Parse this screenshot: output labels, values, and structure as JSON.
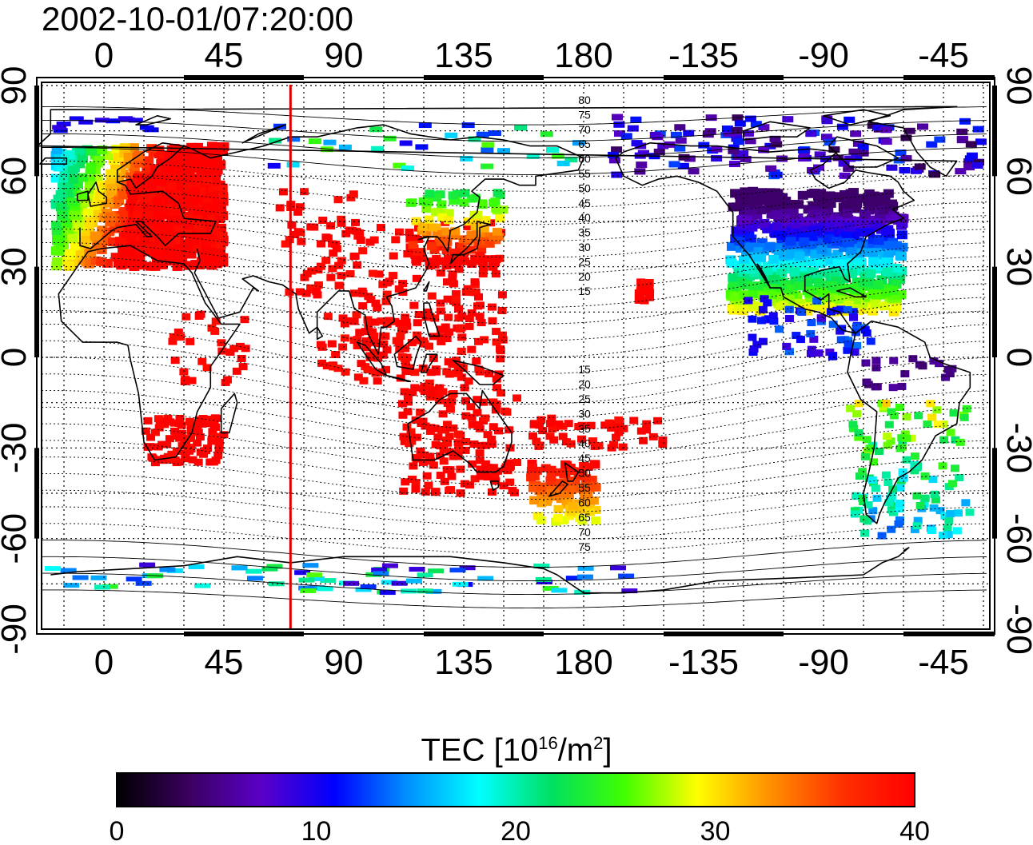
{
  "timestamp": "2002-10-01/07:20:00",
  "map": {
    "top_lon_labels": [
      "0",
      "45",
      "90",
      "135",
      "180",
      "-135",
      "-90",
      "-45"
    ],
    "bottom_lon_labels": [
      "0",
      "45",
      "90",
      "135",
      "180",
      "-135",
      "-90",
      "-45"
    ],
    "left_lat_labels": [
      "90",
      "60",
      "30",
      "0",
      "-30",
      "-60",
      "-90"
    ],
    "right_lat_labels": [
      "90",
      "60",
      "30",
      "0",
      "-30",
      "-60",
      "-90"
    ],
    "meridian_marker_lon": 70,
    "contour_labels_north": [
      "80",
      "75",
      "70",
      "65",
      "60",
      "55",
      "50",
      "45",
      "40",
      "35",
      "30",
      "25",
      "20",
      "15"
    ],
    "contour_labels_south": [
      "15",
      "20",
      "25",
      "30",
      "35",
      "40",
      "45",
      "50",
      "55",
      "60",
      "65",
      "70",
      "75"
    ],
    "colors": {
      "marker_line": "#dd0000",
      "coast": "#000000"
    }
  },
  "colorbar": {
    "title_main": "TEC  [10",
    "title_exp1": "16",
    "title_mid": "/m",
    "title_exp2": "2",
    "title_end": "]",
    "ticks": [
      "0",
      "10",
      "20",
      "30",
      "40"
    ],
    "min": 0,
    "max": 40,
    "stops": [
      "#000000",
      "#3a0060",
      "#5a00c8",
      "#0000ff",
      "#0090ff",
      "#00ffff",
      "#00e060",
      "#40ff00",
      "#ffff00",
      "#ff9000",
      "#ff3000",
      "#ff0000"
    ]
  }
}
